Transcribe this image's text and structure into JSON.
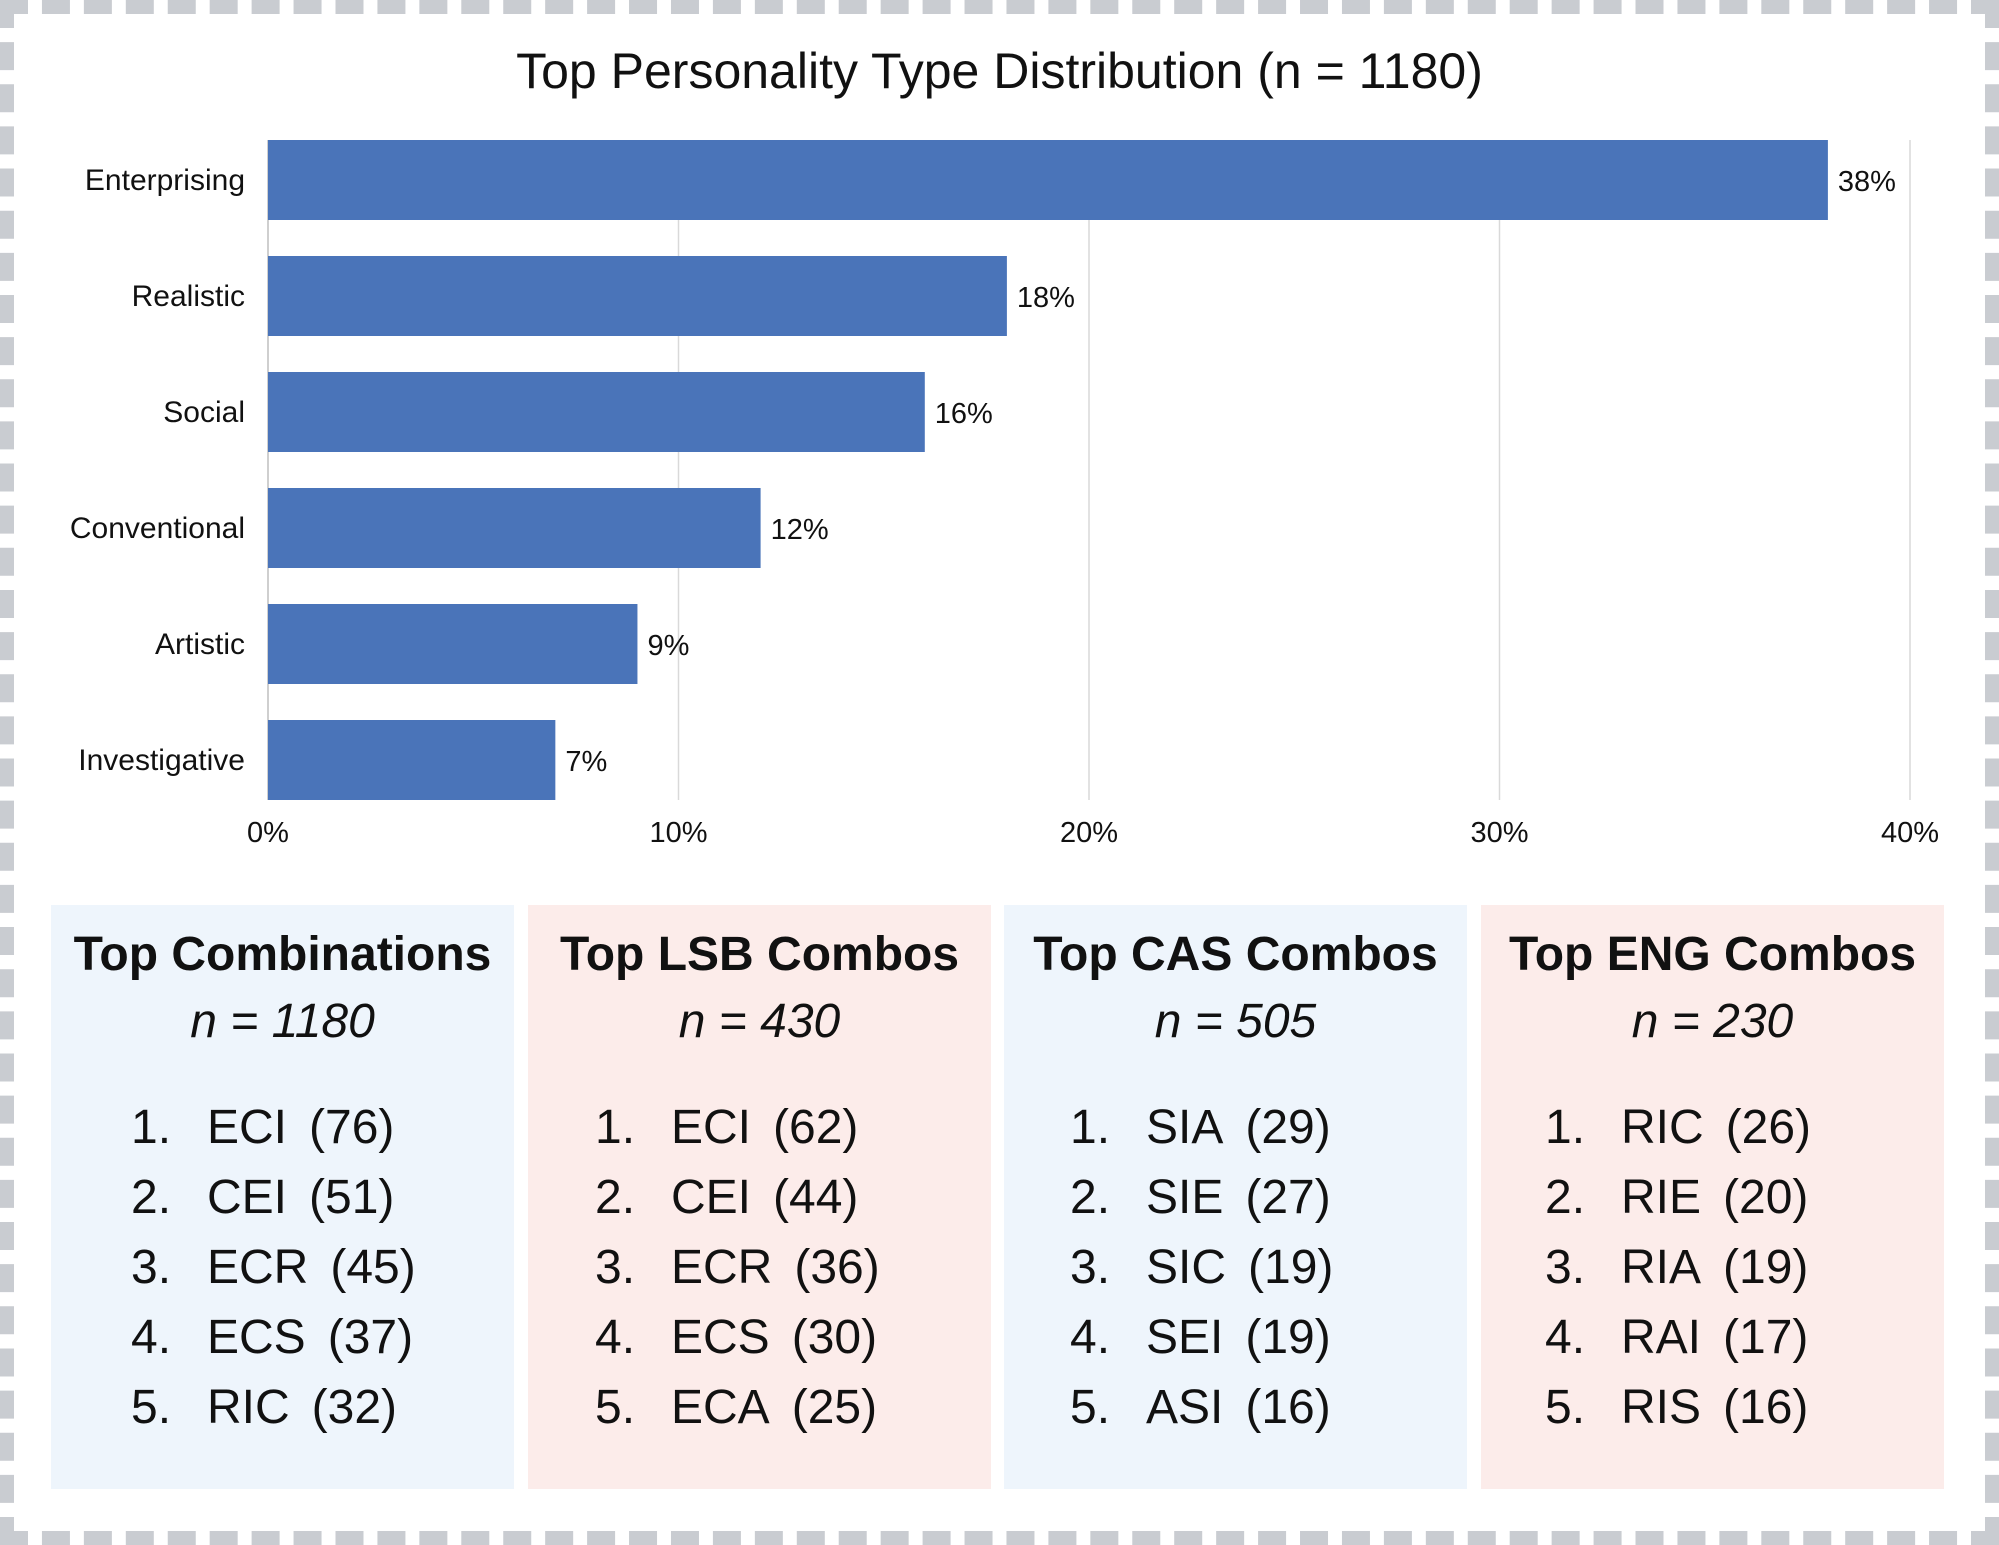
{
  "chart_data": {
    "type": "bar",
    "orientation": "horizontal",
    "title": "Top Personality Type Distribution (n = 1180)",
    "categories": [
      "Enterprising",
      "Realistic",
      "Social",
      "Conventional",
      "Artistic",
      "Investigative"
    ],
    "values": [
      38,
      18,
      16,
      12,
      9,
      7
    ],
    "value_labels": [
      "38%",
      "18%",
      "16%",
      "12%",
      "9%",
      "7%"
    ],
    "xlim": [
      0,
      40
    ],
    "x_ticks": [
      0,
      10,
      20,
      30,
      40
    ],
    "x_tick_labels": [
      "0%",
      "10%",
      "20%",
      "30%",
      "40%"
    ],
    "xlabel": "",
    "ylabel": "",
    "grid": "vertical",
    "bar_color": "#4a74b9",
    "grid_color": "#d9d9d9"
  },
  "panels": [
    {
      "title": "Top Combinations",
      "n": "n = 1180",
      "color": "#eef5fc",
      "items": [
        {
          "rank": "1.",
          "code": "ECI",
          "count": "(76)"
        },
        {
          "rank": "2.",
          "code": "CEI",
          "count": "(51)"
        },
        {
          "rank": "3.",
          "code": "ECR",
          "count": "(45)"
        },
        {
          "rank": "4.",
          "code": "ECS",
          "count": "(37)"
        },
        {
          "rank": "5.",
          "code": "RIC",
          "count": "(32)"
        }
      ]
    },
    {
      "title": "Top LSB Combos",
      "n": "n = 430",
      "color": "#fcecea",
      "items": [
        {
          "rank": "1.",
          "code": "ECI",
          "count": "(62)"
        },
        {
          "rank": "2.",
          "code": "CEI",
          "count": "(44)"
        },
        {
          "rank": "3.",
          "code": "ECR",
          "count": "(36)"
        },
        {
          "rank": "4.",
          "code": "ECS",
          "count": "(30)"
        },
        {
          "rank": "5.",
          "code": "ECA",
          "count": "(25)"
        }
      ]
    },
    {
      "title": "Top CAS Combos",
      "n": "n = 505",
      "color": "#eef5fc",
      "items": [
        {
          "rank": "1.",
          "code": "SIA",
          "count": "(29)"
        },
        {
          "rank": "2.",
          "code": "SIE",
          "count": "(27)"
        },
        {
          "rank": "3.",
          "code": "SIC",
          "count": "(19)"
        },
        {
          "rank": "4.",
          "code": "SEI",
          "count": "(19)"
        },
        {
          "rank": "5.",
          "code": "ASI",
          "count": "(16)"
        }
      ]
    },
    {
      "title": "Top ENG Combos",
      "n": "n = 230",
      "color": "#fcecea",
      "items": [
        {
          "rank": "1.",
          "code": "RIC",
          "count": "(26)"
        },
        {
          "rank": "2.",
          "code": "RIE",
          "count": "(20)"
        },
        {
          "rank": "3.",
          "code": "RIA",
          "count": "(19)"
        },
        {
          "rank": "4.",
          "code": "RAI",
          "count": "(17)"
        },
        {
          "rank": "5.",
          "code": "RIS",
          "count": "(16)"
        }
      ]
    }
  ]
}
